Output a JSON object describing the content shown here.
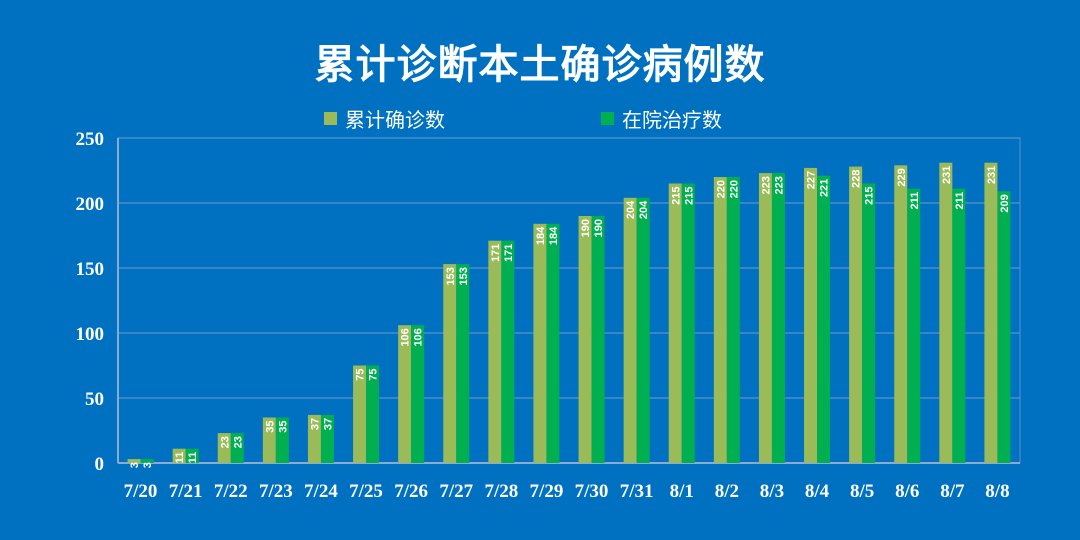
{
  "chart_data": {
    "type": "bar",
    "title": "累计诊断本土确诊病例数",
    "categories": [
      "7/20",
      "7/21",
      "7/22",
      "7/23",
      "7/24",
      "7/25",
      "7/26",
      "7/27",
      "7/28",
      "7/29",
      "7/30",
      "7/31",
      "8/1",
      "8/2",
      "8/3",
      "8/4",
      "8/5",
      "8/6",
      "8/7",
      "8/8"
    ],
    "series": [
      {
        "name": "累计确诊数",
        "color": "#9BBB59",
        "values": [
          3,
          11,
          23,
          35,
          37,
          75,
          106,
          153,
          171,
          184,
          190,
          204,
          215,
          220,
          223,
          227,
          228,
          229,
          231,
          231
        ]
      },
      {
        "name": "在院治疗数",
        "color": "#00B050",
        "values": [
          3,
          11,
          23,
          35,
          37,
          75,
          106,
          153,
          171,
          184,
          190,
          204,
          215,
          220,
          223,
          221,
          215,
          211,
          211,
          209
        ]
      }
    ],
    "ylim": [
      0,
      250
    ],
    "yticks": [
      0,
      50,
      100,
      150,
      200,
      250
    ],
    "grid": true,
    "legend": "top-center",
    "data_labels": true
  }
}
